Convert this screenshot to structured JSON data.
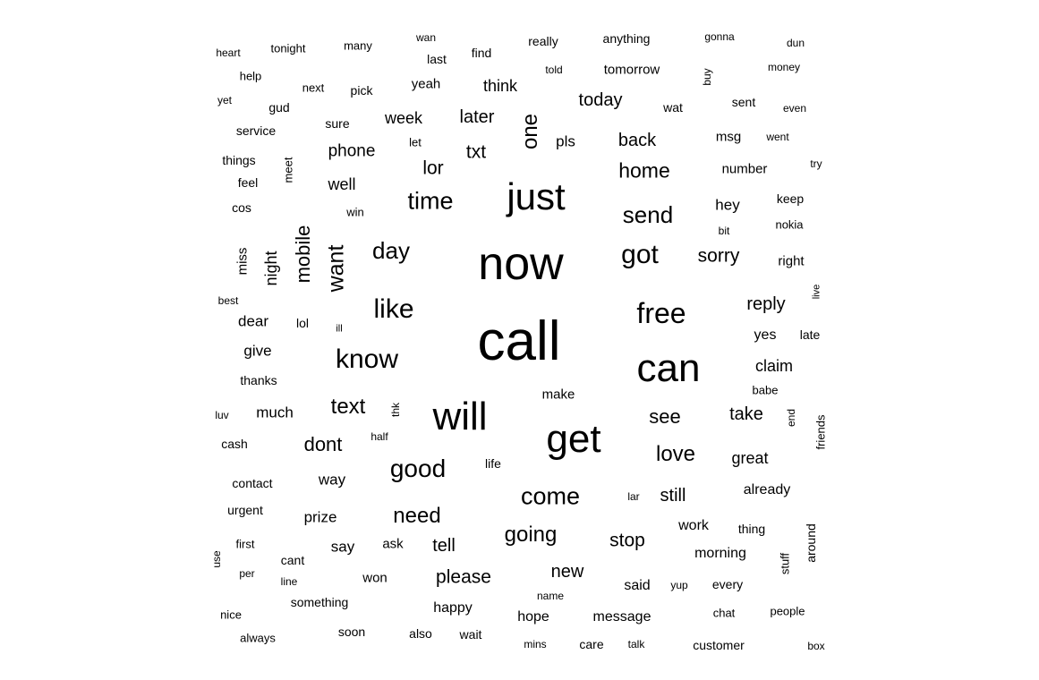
{
  "wordcloud": {
    "words": [
      {
        "text": "call",
        "size": 10
      },
      {
        "text": "now",
        "size": 9
      },
      {
        "text": "get",
        "size": 7.6
      },
      {
        "text": "will",
        "size": 7.6
      },
      {
        "text": "can",
        "size": 7.6
      },
      {
        "text": "just",
        "size": 7.6
      },
      {
        "text": "free",
        "size": 5.6
      },
      {
        "text": "know",
        "size": 5.4
      },
      {
        "text": "like",
        "size": 5.4
      },
      {
        "text": "got",
        "size": 5.2
      },
      {
        "text": "good",
        "size": 5.0
      },
      {
        "text": "come",
        "size": 4.8
      },
      {
        "text": "time",
        "size": 4.8
      },
      {
        "text": "send",
        "size": 4.6
      },
      {
        "text": "day",
        "size": 4.6
      },
      {
        "text": "want",
        "size": 4.6
      },
      {
        "text": "love",
        "size": 4.4
      },
      {
        "text": "text",
        "size": 4.4
      },
      {
        "text": "going",
        "size": 4.4
      },
      {
        "text": "need",
        "size": 4.4
      },
      {
        "text": "one",
        "size": 4.2
      },
      {
        "text": "home",
        "size": 4.2
      },
      {
        "text": "see",
        "size": 4.0
      },
      {
        "text": "dont",
        "size": 4.0
      },
      {
        "text": "mobile",
        "size": 4.0
      },
      {
        "text": "please",
        "size": 3.8
      },
      {
        "text": "stop",
        "size": 3.8
      },
      {
        "text": "sorry",
        "size": 3.8
      },
      {
        "text": "txt",
        "size": 3.8
      },
      {
        "text": "back",
        "size": 3.8
      },
      {
        "text": "lor",
        "size": 3.8
      },
      {
        "text": "later",
        "size": 3.8
      },
      {
        "text": "new",
        "size": 3.6
      },
      {
        "text": "still",
        "size": 3.6
      },
      {
        "text": "take",
        "size": 3.6
      },
      {
        "text": "today",
        "size": 3.6
      },
      {
        "text": "reply",
        "size": 3.6
      },
      {
        "text": "phone",
        "size": 3.6
      },
      {
        "text": "tell",
        "size": 3.6
      },
      {
        "text": "great",
        "size": 3.4
      },
      {
        "text": "night",
        "size": 3.4
      },
      {
        "text": "claim",
        "size": 3.4
      },
      {
        "text": "think",
        "size": 3.4
      },
      {
        "text": "week",
        "size": 3.4
      },
      {
        "text": "much",
        "size": 3.2
      },
      {
        "text": "well",
        "size": 3.2
      },
      {
        "text": "dear",
        "size": 3.2
      },
      {
        "text": "give",
        "size": 3.2
      },
      {
        "text": "say",
        "size": 3.2
      },
      {
        "text": "prize",
        "size": 3.2
      },
      {
        "text": "hey",
        "size": 3.2
      },
      {
        "text": "yes",
        "size": 3.2
      },
      {
        "text": "way",
        "size": 3.2
      },
      {
        "text": "pls",
        "size": 3.2
      },
      {
        "text": "happy",
        "size": 3.0
      },
      {
        "text": "message",
        "size": 3.0
      },
      {
        "text": "hope",
        "size": 3.0
      },
      {
        "text": "said",
        "size": 3.0
      },
      {
        "text": "already",
        "size": 3.0
      },
      {
        "text": "work",
        "size": 3.0
      },
      {
        "text": "morning",
        "size": 3.0
      },
      {
        "text": "make",
        "size": 3.0
      },
      {
        "text": "msg",
        "size": 3.0
      },
      {
        "text": "number",
        "size": 3.0
      },
      {
        "text": "right",
        "size": 3.0
      },
      {
        "text": "tomorrow",
        "size": 3.0
      },
      {
        "text": "yeah",
        "size": 3.0
      },
      {
        "text": "miss",
        "size": 3.0
      },
      {
        "text": "something",
        "size": 2.8
      },
      {
        "text": "ask",
        "size": 2.8
      },
      {
        "text": "won",
        "size": 2.8
      },
      {
        "text": "customer",
        "size": 2.8
      },
      {
        "text": "care",
        "size": 2.8
      },
      {
        "text": "thanks",
        "size": 2.8
      },
      {
        "text": "contact",
        "size": 2.8
      },
      {
        "text": "urgent",
        "size": 2.8
      },
      {
        "text": "cash",
        "size": 2.8
      },
      {
        "text": "life",
        "size": 2.8
      },
      {
        "text": "every",
        "size": 2.8
      },
      {
        "text": "thing",
        "size": 2.8
      },
      {
        "text": "around",
        "size": 2.8
      },
      {
        "text": "babe",
        "size": 2.8
      },
      {
        "text": "keep",
        "size": 2.8
      },
      {
        "text": "nokia",
        "size": 2.8
      },
      {
        "text": "sent",
        "size": 2.8
      },
      {
        "text": "wat",
        "size": 2.8
      },
      {
        "text": "last",
        "size": 2.8
      },
      {
        "text": "find",
        "size": 2.8
      },
      {
        "text": "anything",
        "size": 2.8
      },
      {
        "text": "really",
        "size": 2.8
      },
      {
        "text": "many",
        "size": 2.8
      },
      {
        "text": "next",
        "size": 2.8
      },
      {
        "text": "pick",
        "size": 2.8
      },
      {
        "text": "sure",
        "size": 2.8
      },
      {
        "text": "service",
        "size": 2.8
      },
      {
        "text": "things",
        "size": 2.8
      },
      {
        "text": "feel",
        "size": 2.8
      },
      {
        "text": "cos",
        "size": 2.8
      },
      {
        "text": "gud",
        "size": 2.8
      },
      {
        "text": "late",
        "size": 2.8
      },
      {
        "text": "friends",
        "size": 2.8
      },
      {
        "text": "soon",
        "size": 2.6
      },
      {
        "text": "also",
        "size": 2.6
      },
      {
        "text": "wait",
        "size": 2.6
      },
      {
        "text": "cant",
        "size": 2.6
      },
      {
        "text": "first",
        "size": 2.6
      },
      {
        "text": "nice",
        "size": 2.6
      },
      {
        "text": "always",
        "size": 2.6
      },
      {
        "text": "chat",
        "size": 2.6
      },
      {
        "text": "people",
        "size": 2.6
      },
      {
        "text": "stuff",
        "size": 2.6
      },
      {
        "text": "lol",
        "size": 2.6
      },
      {
        "text": "meet",
        "size": 2.6
      },
      {
        "text": "win",
        "size": 2.6
      },
      {
        "text": "let",
        "size": 2.6
      },
      {
        "text": "tonight",
        "size": 2.6
      },
      {
        "text": "heart",
        "size": 2.6
      },
      {
        "text": "help",
        "size": 2.6
      },
      {
        "text": "yet",
        "size": 2.6
      },
      {
        "text": "money",
        "size": 2.6
      },
      {
        "text": "gonna",
        "size": 2.6
      },
      {
        "text": "wan",
        "size": 2.4
      },
      {
        "text": "told",
        "size": 2.4
      },
      {
        "text": "buy",
        "size": 2.4
      },
      {
        "text": "dun",
        "size": 2.4
      },
      {
        "text": "even",
        "size": 2.4
      },
      {
        "text": "went",
        "size": 2.4
      },
      {
        "text": "try",
        "size": 2.4
      },
      {
        "text": "bit",
        "size": 2.4
      },
      {
        "text": "best",
        "size": 2.4
      },
      {
        "text": "ill",
        "size": 2.4
      },
      {
        "text": "luv",
        "size": 2.4
      },
      {
        "text": "half",
        "size": 2.4
      },
      {
        "text": "thk",
        "size": 2.4
      },
      {
        "text": "lar",
        "size": 2.4
      },
      {
        "text": "name",
        "size": 2.4
      },
      {
        "text": "mins",
        "size": 2.4
      },
      {
        "text": "talk",
        "size": 2.4
      },
      {
        "text": "yup",
        "size": 2.4
      },
      {
        "text": "per",
        "size": 2.4
      },
      {
        "text": "line",
        "size": 2.4
      },
      {
        "text": "use",
        "size": 2.4
      },
      {
        "text": "end",
        "size": 2.4
      },
      {
        "text": "live",
        "size": 2.4
      },
      {
        "text": "box",
        "size": 2.4
      }
    ]
  }
}
